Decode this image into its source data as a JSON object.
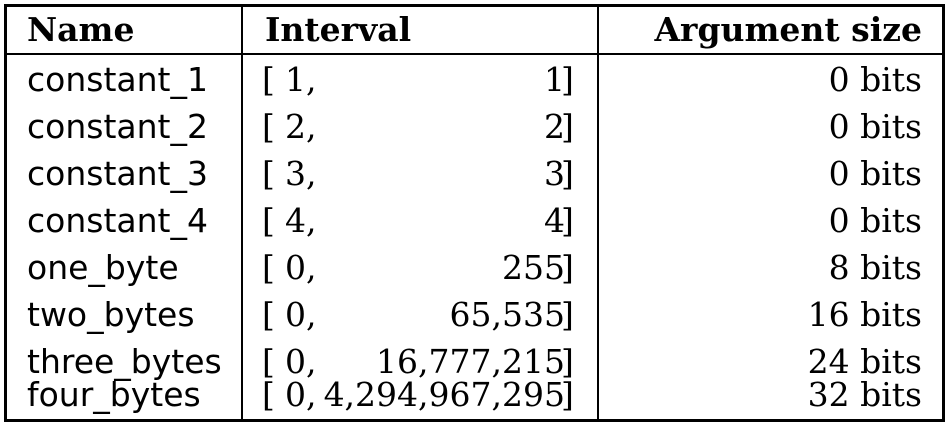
{
  "headers": {
    "name": "Name",
    "interval": "Interval",
    "argument_size": "Argument size"
  },
  "rows": [
    {
      "name": "constant_1",
      "open": "[",
      "low": "1",
      "comma": ",",
      "high": "1",
      "close": "]",
      "size": "0 bits"
    },
    {
      "name": "constant_2",
      "open": "[",
      "low": "2",
      "comma": ",",
      "high": "2",
      "close": "]",
      "size": "0 bits"
    },
    {
      "name": "constant_3",
      "open": "[",
      "low": "3",
      "comma": ",",
      "high": "3",
      "close": "]",
      "size": "0 bits"
    },
    {
      "name": "constant_4",
      "open": "[",
      "low": "4",
      "comma": ",",
      "high": "4",
      "close": "]",
      "size": "0 bits"
    },
    {
      "name": "one_byte",
      "open": "[",
      "low": "0",
      "comma": ",",
      "high": "255",
      "close": "]",
      "size": "8 bits"
    },
    {
      "name": "two_bytes",
      "open": "[",
      "low": "0",
      "comma": ",",
      "high": "65,535",
      "close": "]",
      "size": "16 bits"
    },
    {
      "name": "three_bytes",
      "open": "[",
      "low": "0",
      "comma": ",",
      "high": "16,777,215",
      "close": "]",
      "size": "24 bits"
    },
    {
      "name": "four_bytes",
      "open": "[",
      "low": "0",
      "comma": ",",
      "high": "4,294,967,295",
      "close": "]",
      "size": "32 bits"
    }
  ]
}
